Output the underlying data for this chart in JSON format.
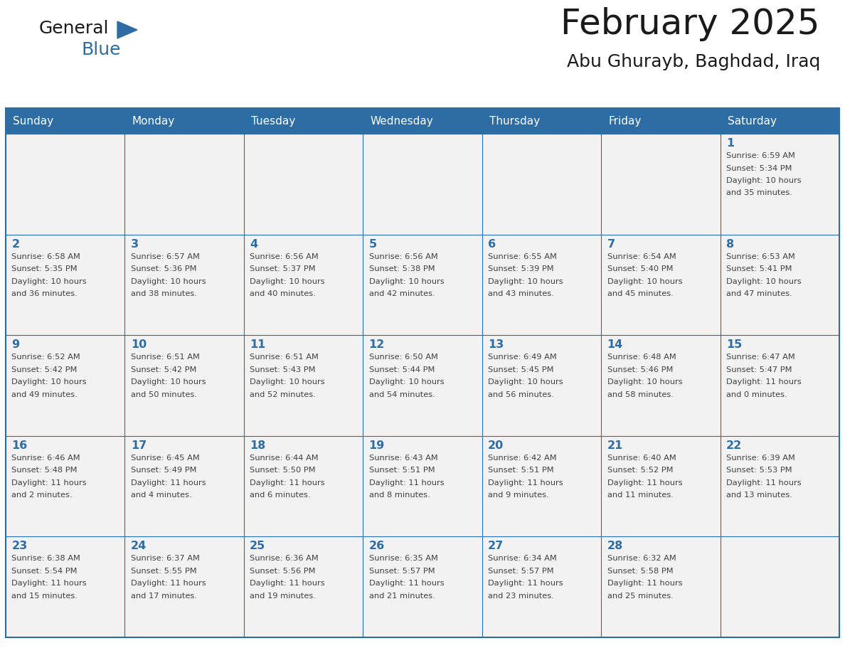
{
  "title": "February 2025",
  "subtitle": "Abu Ghurayb, Baghdad, Iraq",
  "header_bg": "#2E6DA4",
  "header_text_color": "#FFFFFF",
  "cell_bg": "#F2F2F2",
  "day_number_color": "#2E6DA4",
  "info_text_color": "#404040",
  "border_color": "#2E6DA4",
  "days_of_week": [
    "Sunday",
    "Monday",
    "Tuesday",
    "Wednesday",
    "Thursday",
    "Friday",
    "Saturday"
  ],
  "weeks": [
    [
      null,
      null,
      null,
      null,
      null,
      null,
      1
    ],
    [
      2,
      3,
      4,
      5,
      6,
      7,
      8
    ],
    [
      9,
      10,
      11,
      12,
      13,
      14,
      15
    ],
    [
      16,
      17,
      18,
      19,
      20,
      21,
      22
    ],
    [
      23,
      24,
      25,
      26,
      27,
      28,
      null
    ]
  ],
  "sun_data": {
    "1": {
      "rise": "6:59 AM",
      "set": "5:34 PM",
      "day_hours": 10,
      "day_mins": 35
    },
    "2": {
      "rise": "6:58 AM",
      "set": "5:35 PM",
      "day_hours": 10,
      "day_mins": 36
    },
    "3": {
      "rise": "6:57 AM",
      "set": "5:36 PM",
      "day_hours": 10,
      "day_mins": 38
    },
    "4": {
      "rise": "6:56 AM",
      "set": "5:37 PM",
      "day_hours": 10,
      "day_mins": 40
    },
    "5": {
      "rise": "6:56 AM",
      "set": "5:38 PM",
      "day_hours": 10,
      "day_mins": 42
    },
    "6": {
      "rise": "6:55 AM",
      "set": "5:39 PM",
      "day_hours": 10,
      "day_mins": 43
    },
    "7": {
      "rise": "6:54 AM",
      "set": "5:40 PM",
      "day_hours": 10,
      "day_mins": 45
    },
    "8": {
      "rise": "6:53 AM",
      "set": "5:41 PM",
      "day_hours": 10,
      "day_mins": 47
    },
    "9": {
      "rise": "6:52 AM",
      "set": "5:42 PM",
      "day_hours": 10,
      "day_mins": 49
    },
    "10": {
      "rise": "6:51 AM",
      "set": "5:42 PM",
      "day_hours": 10,
      "day_mins": 50
    },
    "11": {
      "rise": "6:51 AM",
      "set": "5:43 PM",
      "day_hours": 10,
      "day_mins": 52
    },
    "12": {
      "rise": "6:50 AM",
      "set": "5:44 PM",
      "day_hours": 10,
      "day_mins": 54
    },
    "13": {
      "rise": "6:49 AM",
      "set": "5:45 PM",
      "day_hours": 10,
      "day_mins": 56
    },
    "14": {
      "rise": "6:48 AM",
      "set": "5:46 PM",
      "day_hours": 10,
      "day_mins": 58
    },
    "15": {
      "rise": "6:47 AM",
      "set": "5:47 PM",
      "day_hours": 11,
      "day_mins": 0
    },
    "16": {
      "rise": "6:46 AM",
      "set": "5:48 PM",
      "day_hours": 11,
      "day_mins": 2
    },
    "17": {
      "rise": "6:45 AM",
      "set": "5:49 PM",
      "day_hours": 11,
      "day_mins": 4
    },
    "18": {
      "rise": "6:44 AM",
      "set": "5:50 PM",
      "day_hours": 11,
      "day_mins": 6
    },
    "19": {
      "rise": "6:43 AM",
      "set": "5:51 PM",
      "day_hours": 11,
      "day_mins": 8
    },
    "20": {
      "rise": "6:42 AM",
      "set": "5:51 PM",
      "day_hours": 11,
      "day_mins": 9
    },
    "21": {
      "rise": "6:40 AM",
      "set": "5:52 PM",
      "day_hours": 11,
      "day_mins": 11
    },
    "22": {
      "rise": "6:39 AM",
      "set": "5:53 PM",
      "day_hours": 11,
      "day_mins": 13
    },
    "23": {
      "rise": "6:38 AM",
      "set": "5:54 PM",
      "day_hours": 11,
      "day_mins": 15
    },
    "24": {
      "rise": "6:37 AM",
      "set": "5:55 PM",
      "day_hours": 11,
      "day_mins": 17
    },
    "25": {
      "rise": "6:36 AM",
      "set": "5:56 PM",
      "day_hours": 11,
      "day_mins": 19
    },
    "26": {
      "rise": "6:35 AM",
      "set": "5:57 PM",
      "day_hours": 11,
      "day_mins": 21
    },
    "27": {
      "rise": "6:34 AM",
      "set": "5:57 PM",
      "day_hours": 11,
      "day_mins": 23
    },
    "28": {
      "rise": "6:32 AM",
      "set": "5:58 PM",
      "day_hours": 11,
      "day_mins": 25
    }
  }
}
